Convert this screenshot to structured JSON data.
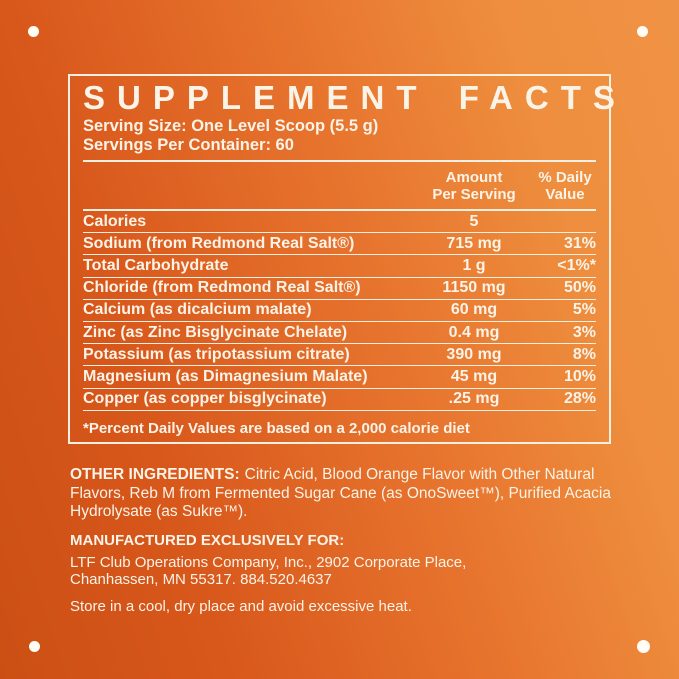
{
  "panel": {
    "title": "SUPPLEMENT FACTS",
    "serving_size": "Serving Size: One Level Scoop (5.5 g)",
    "servings_per_container": "Servings Per Container: 60",
    "columns": {
      "amount_line1": "Amount",
      "amount_line2": "Per Serving",
      "dv_line1": "% Daily",
      "dv_line2": "Value"
    },
    "rows": [
      {
        "name": "Calories",
        "amount": "5",
        "dv": ""
      },
      {
        "name": "Sodium (from Redmond Real Salt®)",
        "amount": "715 mg",
        "dv": "31%"
      },
      {
        "name": "Total Carbohydrate",
        "amount": "1 g",
        "dv": "<1%*"
      },
      {
        "name": "Chloride (from Redmond Real Salt®)",
        "amount": "1150 mg",
        "dv": "50%"
      },
      {
        "name": "Calcium (as dicalcium malate)",
        "amount": "60 mg",
        "dv": "5%"
      },
      {
        "name": "Zinc (as Zinc Bisglycinate Chelate)",
        "amount": "0.4 mg",
        "dv": "3%"
      },
      {
        "name": "Potassium (as tripotassium citrate)",
        "amount": "390 mg",
        "dv": "8%"
      },
      {
        "name": "Magnesium (as Dimagnesium Malate)",
        "amount": "45 mg",
        "dv": "10%"
      },
      {
        "name": "Copper (as copper bisglycinate)",
        "amount": ".25 mg",
        "dv": "28%"
      }
    ],
    "footnote": "*Percent Daily Values are based on a 2,000 calorie diet"
  },
  "other_ingredients": {
    "heading": "OTHER INGREDIENTS:",
    "text": "Citric Acid, Blood Orange Flavor with Other Natural Flavors, Reb M from Fermented Sugar Cane (as OnoSweet™), Purified Acacia Hydrolysate (as Sukre™)."
  },
  "manufactured_for": {
    "heading": "MANUFACTURED EXCLUSIVELY FOR:",
    "address_line1": "LTF Club Operations Company, Inc., 2902 Corporate Place,",
    "address_line2": "Chanhassen, MN 55317. 884.520.4637"
  },
  "storage_note": "Store in a cool, dry place and avoid excessive heat.",
  "colors": {
    "background_dark": "#cb4f14",
    "background_light": "#f09245",
    "text": "#faf3e7",
    "rule_line": "#f6efe2",
    "registration_dot": "#fffdf6"
  }
}
